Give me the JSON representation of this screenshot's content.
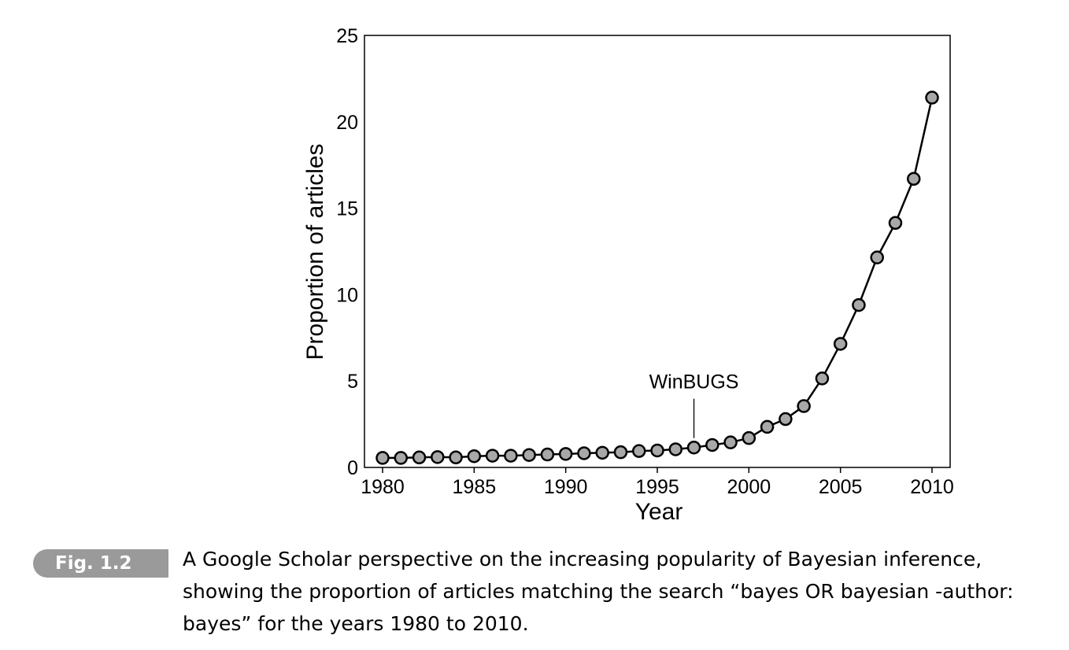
{
  "chart_data": {
    "type": "line",
    "title": "",
    "xlabel": "Year",
    "ylabel": "Proportion of articles",
    "xlim": [
      1980,
      2010
    ],
    "ylim": [
      0,
      25
    ],
    "x_ticks": [
      1980,
      1985,
      1990,
      1995,
      2000,
      2005,
      2010
    ],
    "y_ticks": [
      0,
      5,
      10,
      15,
      20,
      25
    ],
    "grid": false,
    "legend": "none",
    "marker_fill": "#a8a8a8",
    "line_color": "#000000",
    "series": [
      {
        "x": [
          1980,
          1981,
          1982,
          1983,
          1984,
          1985,
          1986,
          1987,
          1988,
          1989,
          1990,
          1991,
          1992,
          1993,
          1994,
          1995,
          1996,
          1997,
          1998,
          1999,
          2000,
          2001,
          2002,
          2003,
          2004,
          2005,
          2006,
          2007,
          2008,
          2009,
          2010
        ],
        "values": [
          0.55,
          0.55,
          0.58,
          0.6,
          0.58,
          0.65,
          0.68,
          0.68,
          0.72,
          0.75,
          0.78,
          0.82,
          0.85,
          0.88,
          0.95,
          0.98,
          1.05,
          1.15,
          1.3,
          1.45,
          1.7,
          2.35,
          2.8,
          3.55,
          5.15,
          7.15,
          9.4,
          12.15,
          14.15,
          16.7,
          21.4
        ]
      }
    ],
    "annotations": [
      {
        "text": "WinBUGS",
        "x": 1997,
        "y": 1.15
      }
    ]
  },
  "caption": {
    "badge": "Fig. 1.2",
    "text": "A Google Scholar perspective on the increasing popularity of Bayesian inference, showing the proportion of articles matching the search “bayes OR bayesian -author: bayes” for the years 1980 to 2010."
  }
}
